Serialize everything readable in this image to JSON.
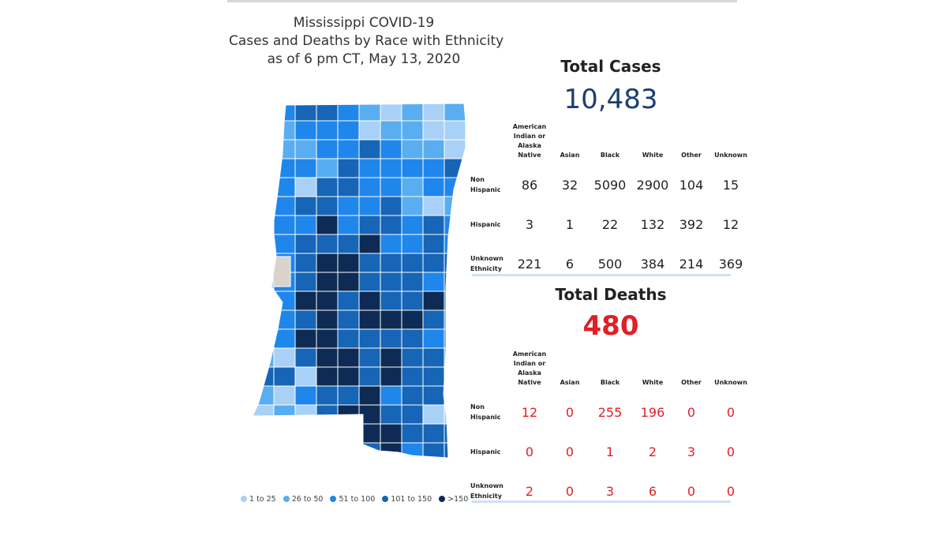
{
  "title": {
    "line1": "Mississippi COVID-19",
    "line2": "Cases and Deaths by Race with Ethnicity",
    "line3": "as of 6 pm CT, May 13, 2020"
  },
  "colors": {
    "c1": "#a9d1f7",
    "c2": "#59adf1",
    "c3": "#1f86ec",
    "c4": "#1665b6",
    "c5": "#0d2b55",
    "none": "#d9d3cc",
    "death_red": "#e11f26",
    "cases_blue": "#1a3e6e"
  },
  "legend": [
    {
      "label": "1 to 25",
      "color": "#a9d1f7"
    },
    {
      "label": "26 to 50",
      "color": "#59adf1"
    },
    {
      "label": "51 to 100",
      "color": "#1f86ec"
    },
    {
      "label": "101 to 150",
      "color": "#1665b6"
    },
    {
      "label": ">150",
      "color": "#0d2b55"
    }
  ],
  "columns": [
    "American Indian or Alaska Native",
    "Asian",
    "Black",
    "White",
    "Other",
    "Unknown"
  ],
  "cases": {
    "heading": "Total Cases",
    "total": "10,483",
    "rows": [
      {
        "label": "Non Hispanic",
        "values": [
          86,
          32,
          5090,
          2900,
          104,
          15
        ]
      },
      {
        "label": "Hispanic",
        "values": [
          3,
          1,
          22,
          132,
          392,
          12
        ]
      },
      {
        "label": "Unknown Ethnicity",
        "values": [
          221,
          6,
          500,
          384,
          214,
          369
        ]
      }
    ]
  },
  "deaths": {
    "heading": "Total Deaths",
    "total": "480",
    "rows": [
      {
        "label": "Non Hispanic",
        "values": [
          12,
          0,
          255,
          196,
          0,
          0
        ]
      },
      {
        "label": "Hispanic",
        "values": [
          0,
          0,
          1,
          2,
          3,
          0
        ]
      },
      {
        "label": "Unknown Ethnicity",
        "values": [
          2,
          0,
          3,
          6,
          0,
          0
        ]
      }
    ]
  }
}
